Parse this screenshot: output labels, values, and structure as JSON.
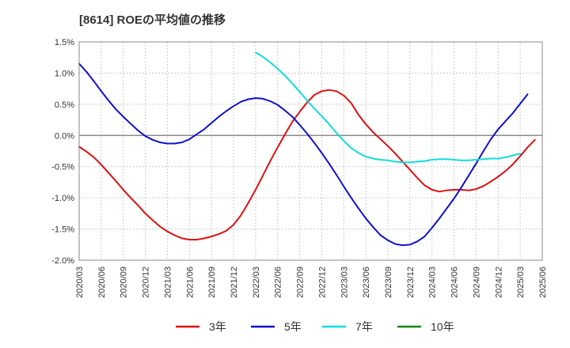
{
  "chart_data": {
    "type": "line",
    "title": "[8614]  ROEの平均値の推移",
    "xlabel": "",
    "ylabel": "",
    "ylim": [
      -2.0,
      1.5
    ],
    "yticks": [
      {
        "value": 1.5,
        "label": "1.5%"
      },
      {
        "value": 1.0,
        "label": "1.0%"
      },
      {
        "value": 0.5,
        "label": "0.5%"
      },
      {
        "value": 0.0,
        "label": "0.0%"
      },
      {
        "value": -0.5,
        "label": "-0.5%"
      },
      {
        "value": -1.0,
        "label": "-1.0%"
      },
      {
        "value": -1.5,
        "label": "-1.5%"
      },
      {
        "value": -2.0,
        "label": "-2.0%"
      }
    ],
    "xticks": [
      "2020/03",
      "2020/06",
      "2020/09",
      "2020/12",
      "2021/03",
      "2021/06",
      "2021/09",
      "2021/12",
      "2022/03",
      "2022/06",
      "2022/09",
      "2022/12",
      "2023/03",
      "2023/06",
      "2023/09",
      "2023/12",
      "2024/03",
      "2024/06",
      "2024/09",
      "2024/12",
      "2025/03",
      "2025/06"
    ],
    "grid": true,
    "legend_position": "bottom",
    "series": [
      {
        "name": "3年",
        "color": "#dd1111",
        "points": [
          [
            "2020/03",
            -0.18
          ],
          [
            "2020/04",
            -0.26
          ],
          [
            "2020/05",
            -0.35
          ],
          [
            "2020/06",
            -0.47
          ],
          [
            "2020/07",
            -0.6
          ],
          [
            "2020/08",
            -0.73
          ],
          [
            "2020/09",
            -0.87
          ],
          [
            "2020/10",
            -1.0
          ],
          [
            "2020/11",
            -1.12
          ],
          [
            "2020/12",
            -1.25
          ],
          [
            "2021/01",
            -1.36
          ],
          [
            "2021/02",
            -1.46
          ],
          [
            "2021/03",
            -1.54
          ],
          [
            "2021/04",
            -1.6
          ],
          [
            "2021/05",
            -1.65
          ],
          [
            "2021/06",
            -1.67
          ],
          [
            "2021/07",
            -1.67
          ],
          [
            "2021/08",
            -1.65
          ],
          [
            "2021/09",
            -1.62
          ],
          [
            "2021/10",
            -1.58
          ],
          [
            "2021/11",
            -1.53
          ],
          [
            "2021/12",
            -1.43
          ],
          [
            "2022/01",
            -1.28
          ],
          [
            "2022/02",
            -1.08
          ],
          [
            "2022/03",
            -0.87
          ],
          [
            "2022/04",
            -0.64
          ],
          [
            "2022/05",
            -0.41
          ],
          [
            "2022/06",
            -0.19
          ],
          [
            "2022/07",
            0.02
          ],
          [
            "2022/08",
            0.22
          ],
          [
            "2022/09",
            0.38
          ],
          [
            "2022/10",
            0.53
          ],
          [
            "2022/11",
            0.65
          ],
          [
            "2022/12",
            0.71
          ],
          [
            "2023/01",
            0.73
          ],
          [
            "2023/02",
            0.71
          ],
          [
            "2023/03",
            0.64
          ],
          [
            "2023/04",
            0.52
          ],
          [
            "2023/05",
            0.33
          ],
          [
            "2023/06",
            0.18
          ],
          [
            "2023/07",
            0.05
          ],
          [
            "2023/08",
            -0.06
          ],
          [
            "2023/09",
            -0.17
          ],
          [
            "2023/10",
            -0.29
          ],
          [
            "2023/11",
            -0.42
          ],
          [
            "2023/12",
            -0.55
          ],
          [
            "2024/01",
            -0.68
          ],
          [
            "2024/02",
            -0.8
          ],
          [
            "2024/03",
            -0.87
          ],
          [
            "2024/04",
            -0.9
          ],
          [
            "2024/05",
            -0.88
          ],
          [
            "2024/06",
            -0.87
          ],
          [
            "2024/07",
            -0.87
          ],
          [
            "2024/08",
            -0.88
          ],
          [
            "2024/09",
            -0.86
          ],
          [
            "2024/10",
            -0.81
          ],
          [
            "2024/11",
            -0.74
          ],
          [
            "2024/12",
            -0.66
          ],
          [
            "2025/01",
            -0.57
          ],
          [
            "2025/02",
            -0.46
          ],
          [
            "2025/03",
            -0.33
          ],
          [
            "2025/04",
            -0.19
          ],
          [
            "2025/05",
            -0.07
          ]
        ]
      },
      {
        "name": "5年",
        "color": "#1111cc",
        "points": [
          [
            "2020/03",
            1.15
          ],
          [
            "2020/04",
            1.02
          ],
          [
            "2020/05",
            0.87
          ],
          [
            "2020/06",
            0.71
          ],
          [
            "2020/07",
            0.56
          ],
          [
            "2020/08",
            0.42
          ],
          [
            "2020/09",
            0.3
          ],
          [
            "2020/10",
            0.19
          ],
          [
            "2020/11",
            0.08
          ],
          [
            "2020/12",
            -0.01
          ],
          [
            "2021/01",
            -0.07
          ],
          [
            "2021/02",
            -0.11
          ],
          [
            "2021/03",
            -0.13
          ],
          [
            "2021/04",
            -0.13
          ],
          [
            "2021/05",
            -0.11
          ],
          [
            "2021/06",
            -0.06
          ],
          [
            "2021/07",
            0.02
          ],
          [
            "2021/08",
            0.1
          ],
          [
            "2021/09",
            0.2
          ],
          [
            "2021/10",
            0.3
          ],
          [
            "2021/11",
            0.39
          ],
          [
            "2021/12",
            0.47
          ],
          [
            "2022/01",
            0.54
          ],
          [
            "2022/02",
            0.58
          ],
          [
            "2022/03",
            0.6
          ],
          [
            "2022/04",
            0.59
          ],
          [
            "2022/05",
            0.55
          ],
          [
            "2022/06",
            0.49
          ],
          [
            "2022/07",
            0.4
          ],
          [
            "2022/08",
            0.3
          ],
          [
            "2022/09",
            0.17
          ],
          [
            "2022/10",
            0.03
          ],
          [
            "2022/11",
            -0.12
          ],
          [
            "2022/12",
            -0.28
          ],
          [
            "2023/01",
            -0.45
          ],
          [
            "2023/02",
            -0.63
          ],
          [
            "2023/03",
            -0.82
          ],
          [
            "2023/04",
            -1.0
          ],
          [
            "2023/05",
            -1.17
          ],
          [
            "2023/06",
            -1.33
          ],
          [
            "2023/07",
            -1.47
          ],
          [
            "2023/08",
            -1.6
          ],
          [
            "2023/09",
            -1.68
          ],
          [
            "2023/10",
            -1.74
          ],
          [
            "2023/11",
            -1.76
          ],
          [
            "2023/12",
            -1.75
          ],
          [
            "2024/01",
            -1.7
          ],
          [
            "2024/02",
            -1.62
          ],
          [
            "2024/03",
            -1.48
          ],
          [
            "2024/04",
            -1.33
          ],
          [
            "2024/05",
            -1.17
          ],
          [
            "2024/06",
            -1.01
          ],
          [
            "2024/07",
            -0.83
          ],
          [
            "2024/08",
            -0.64
          ],
          [
            "2024/09",
            -0.45
          ],
          [
            "2024/10",
            -0.25
          ],
          [
            "2024/11",
            -0.06
          ],
          [
            "2024/12",
            0.1
          ],
          [
            "2025/01",
            0.23
          ],
          [
            "2025/02",
            0.36
          ],
          [
            "2025/03",
            0.51
          ],
          [
            "2025/04",
            0.66
          ]
        ]
      },
      {
        "name": "7年",
        "color": "#11dddd",
        "points": [
          [
            "2022/03",
            1.33
          ],
          [
            "2022/04",
            1.26
          ],
          [
            "2022/05",
            1.17
          ],
          [
            "2022/06",
            1.07
          ],
          [
            "2022/07",
            0.96
          ],
          [
            "2022/08",
            0.83
          ],
          [
            "2022/09",
            0.7
          ],
          [
            "2022/10",
            0.56
          ],
          [
            "2022/11",
            0.43
          ],
          [
            "2022/12",
            0.31
          ],
          [
            "2023/01",
            0.18
          ],
          [
            "2023/02",
            0.04
          ],
          [
            "2023/03",
            -0.09
          ],
          [
            "2023/04",
            -0.2
          ],
          [
            "2023/05",
            -0.28
          ],
          [
            "2023/06",
            -0.34
          ],
          [
            "2023/07",
            -0.37
          ],
          [
            "2023/08",
            -0.39
          ],
          [
            "2023/09",
            -0.4
          ],
          [
            "2023/10",
            -0.42
          ],
          [
            "2023/11",
            -0.43
          ],
          [
            "2023/12",
            -0.43
          ],
          [
            "2024/01",
            -0.42
          ],
          [
            "2024/02",
            -0.41
          ],
          [
            "2024/03",
            -0.39
          ],
          [
            "2024/04",
            -0.38
          ],
          [
            "2024/05",
            -0.38
          ],
          [
            "2024/06",
            -0.39
          ],
          [
            "2024/07",
            -0.4
          ],
          [
            "2024/08",
            -0.4
          ],
          [
            "2024/09",
            -0.39
          ],
          [
            "2024/10",
            -0.38
          ],
          [
            "2024/11",
            -0.37
          ],
          [
            "2024/12",
            -0.37
          ],
          [
            "2025/01",
            -0.35
          ],
          [
            "2025/02",
            -0.32
          ],
          [
            "2025/03",
            -0.29
          ]
        ]
      },
      {
        "name": "10年",
        "color": "#118811",
        "points": []
      }
    ]
  }
}
